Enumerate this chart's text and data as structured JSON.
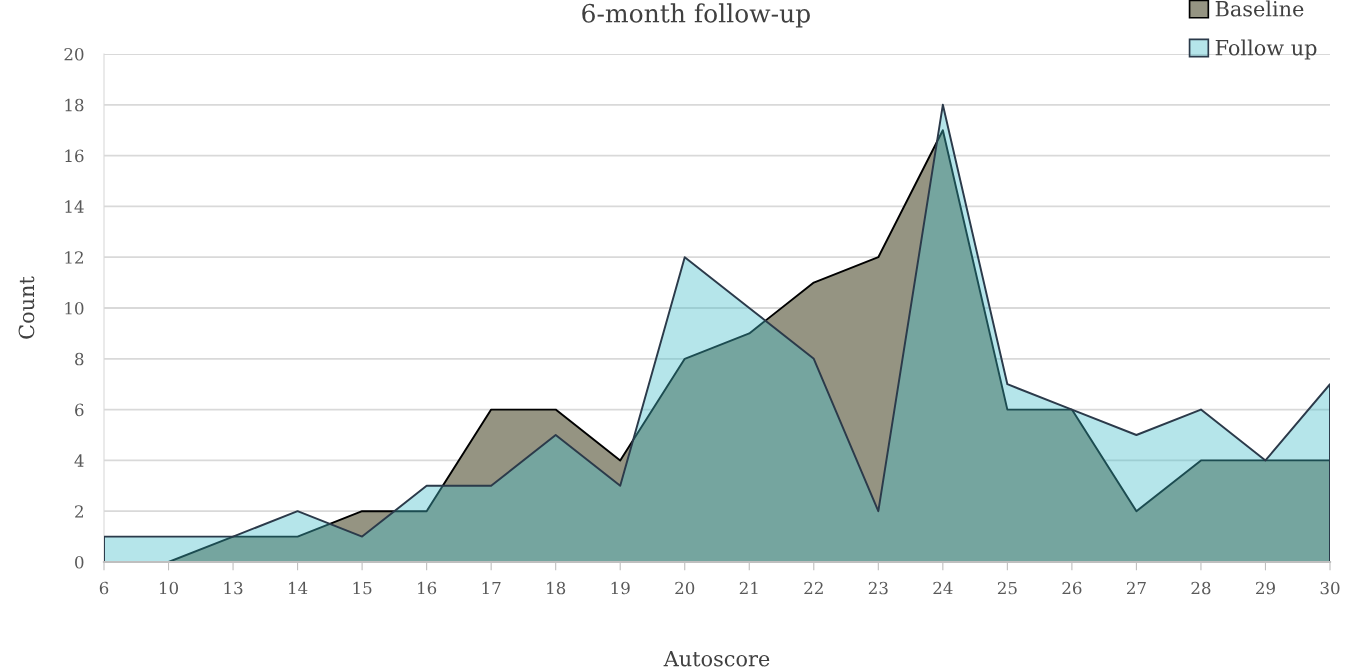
{
  "chart_data": {
    "type": "area",
    "title": "6-month follow-up",
    "xlabel": "Autoscore",
    "ylabel": "Count",
    "categories": [
      "6",
      "10",
      "13",
      "14",
      "15",
      "16",
      "17",
      "18",
      "19",
      "20",
      "21",
      "22",
      "23",
      "24",
      "25",
      "26",
      "27",
      "28",
      "29",
      "30"
    ],
    "series": [
      {
        "name": "Baseline",
        "color": "#959482",
        "values": [
          0,
          0,
          1,
          1,
          2,
          2,
          6,
          6,
          4,
          8,
          9,
          11,
          12,
          17,
          6,
          6,
          2,
          4,
          4,
          4
        ]
      },
      {
        "name": "Follow up",
        "color": "#46bfcb",
        "values": [
          1,
          1,
          1,
          2,
          1,
          3,
          3,
          5,
          3,
          12,
          10,
          8,
          2,
          18,
          7,
          6,
          5,
          6,
          4,
          7
        ]
      }
    ],
    "ylim": [
      0,
      20
    ],
    "yticks": [
      0,
      2,
      4,
      6,
      8,
      10,
      12,
      14,
      16,
      18,
      20
    ],
    "grid": "y",
    "legend": "top right"
  }
}
